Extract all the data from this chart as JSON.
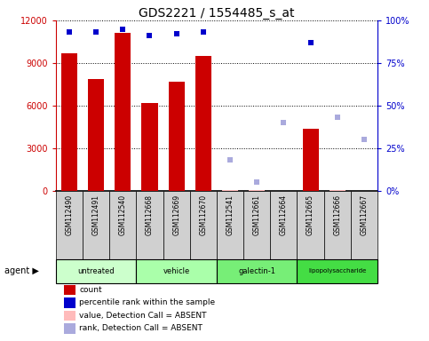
{
  "title": "GDS2221 / 1554485_s_at",
  "samples": [
    "GSM112490",
    "GSM112491",
    "GSM112540",
    "GSM112668",
    "GSM112669",
    "GSM112670",
    "GSM112541",
    "GSM112661",
    "GSM112664",
    "GSM112665",
    "GSM112666",
    "GSM112667"
  ],
  "groups": [
    {
      "name": "untreated",
      "indices": [
        0,
        1,
        2
      ],
      "color": "#ccffcc"
    },
    {
      "name": "vehicle",
      "indices": [
        3,
        4,
        5
      ],
      "color": "#aaffaa"
    },
    {
      "name": "galectin-1",
      "indices": [
        6,
        7,
        8
      ],
      "color": "#77ee77"
    },
    {
      "name": "lipopolysaccharide",
      "indices": [
        9,
        10,
        11
      ],
      "color": "#44dd44"
    }
  ],
  "bar_values": [
    9700,
    7900,
    11100,
    6200,
    7700,
    9500,
    80,
    40,
    0,
    4400,
    60,
    0
  ],
  "bar_absent": [
    false,
    false,
    false,
    false,
    false,
    false,
    true,
    true,
    true,
    false,
    true,
    true
  ],
  "percentile_values": [
    93,
    93,
    95,
    91,
    92,
    93,
    18,
    5,
    40,
    87,
    43,
    30
  ],
  "percentile_absent": [
    false,
    false,
    false,
    false,
    false,
    false,
    true,
    true,
    true,
    false,
    true,
    true
  ],
  "ylim_left": [
    0,
    12000
  ],
  "ylim_right": [
    0,
    100
  ],
  "yticks_left": [
    0,
    3000,
    6000,
    9000,
    12000
  ],
  "yticks_right": [
    0,
    25,
    50,
    75,
    100
  ],
  "yticklabels_right": [
    "0%",
    "25%",
    "50%",
    "75%",
    "100%"
  ],
  "left_color": "#cc0000",
  "right_color": "#0000cc",
  "absent_bar_color": "#ffbbbb",
  "absent_rank_color": "#aaaadd",
  "grid_color": "#000000",
  "label_fontsize": 7,
  "title_fontsize": 10,
  "sample_box_color": "#d0d0d0",
  "legend_items": [
    {
      "color": "#cc0000",
      "label": "count"
    },
    {
      "color": "#0000cc",
      "label": "percentile rank within the sample"
    },
    {
      "color": "#ffbbbb",
      "label": "value, Detection Call = ABSENT"
    },
    {
      "color": "#aaaadd",
      "label": "rank, Detection Call = ABSENT"
    }
  ]
}
